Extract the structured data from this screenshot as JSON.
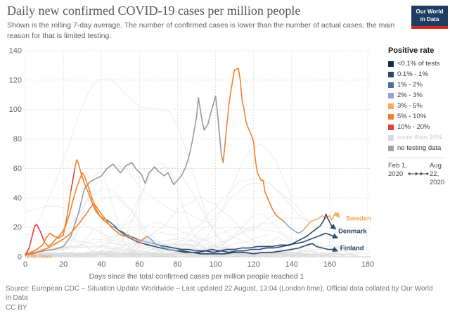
{
  "header": {
    "title": "Daily new confirmed COVID-19 cases per million people",
    "subtitle": "Shown is the rolling 7-day average. The number of confirmed cases is lower than the number of actual cases; the main reason for that is limited testing."
  },
  "logo": {
    "line1": "Our World",
    "line2": "in Data",
    "bg": "#1d3d63",
    "accent": "#d42b21"
  },
  "legend": {
    "title": "Positive rate",
    "items": [
      {
        "label": "<0.1% of tests",
        "color": "#1a2a3e",
        "muted": false
      },
      {
        "label": "0.1% - 1%",
        "color": "#2c4a6e",
        "muted": false
      },
      {
        "label": "1% - 2%",
        "color": "#4a6fa0",
        "muted": false
      },
      {
        "label": "2% - 3%",
        "color": "#8aa8d0",
        "muted": false
      },
      {
        "label": "3% - 5%",
        "color": "#fbab60",
        "muted": false
      },
      {
        "label": "5% - 10%",
        "color": "#f0802f",
        "muted": false
      },
      {
        "label": "10% - 20%",
        "color": "#e0413a",
        "muted": false
      },
      {
        "label": "more than 20%",
        "color": "#d9d9d9",
        "muted": true
      },
      {
        "label": "no testing data",
        "color": "#a3a3a3",
        "muted": false
      }
    ],
    "timeline": {
      "start": "Feb 1, 2020",
      "end": "Aug 22, 2020"
    }
  },
  "footer": {
    "source": "Source: European CDC – Situation Update Worldwide – Last updated 22 August, 13:04 (London time), Official data collated by Our World in Data",
    "license": "CC BY"
  },
  "colors": {
    "grid": "#d9d9d9",
    "axis_line": "#bbbbbb",
    "axis_text": "#666666",
    "background_line": "#dcdcdc",
    "rate_lt01": "#1a2a3e",
    "rate_01_1": "#2c4a6e",
    "rate_1_2": "#4a6fa0",
    "rate_2_3": "#8aa8d0",
    "rate_3_5": "#fbab60",
    "rate_5_10": "#f0802f",
    "rate_10_20": "#e0413a",
    "rate_gt20": "#d9d9d9",
    "no_data": "#989898"
  },
  "chart_data": {
    "type": "line",
    "xlabel": "Days since the total confirmed cases per million people reached 1",
    "ylabel": "",
    "x_ticks": [
      0,
      20,
      40,
      60,
      80,
      100,
      120,
      140,
      160,
      180
    ],
    "y_ticks": [
      0,
      20,
      40,
      60,
      80,
      100,
      120,
      140
    ],
    "x_range": [
      0,
      186
    ],
    "y_range": [
      0,
      140
    ],
    "grid": true,
    "annotation": {
      "text": "2.66 cases",
      "day": 0.6,
      "value": 2.66,
      "color": "#f2924a"
    },
    "background": {
      "count": 46,
      "seed": 7,
      "note": "unhighlighted countries, light gray"
    },
    "series": [
      {
        "name": "Sweden",
        "label": "Sweden",
        "label_color": "#f6a455",
        "label_pos": [
          168.5,
          24.5
        ],
        "arrow": true,
        "segments": [
          {
            "from": 0,
            "to": 104,
            "rate": "no_data"
          },
          {
            "from": 104,
            "to": 136,
            "rate": "rate_5_10"
          },
          {
            "from": 136,
            "to": 145,
            "rate": "rate_2_3"
          },
          {
            "from": 145,
            "to": 166,
            "rate": "rate_3_5"
          }
        ],
        "points": [
          [
            0,
            2
          ],
          [
            5,
            3
          ],
          [
            10,
            4
          ],
          [
            15,
            5
          ],
          [
            20,
            7
          ],
          [
            24,
            14
          ],
          [
            28,
            30
          ],
          [
            31,
            46
          ],
          [
            34,
            51
          ],
          [
            37,
            53
          ],
          [
            40,
            55
          ],
          [
            43,
            60
          ],
          [
            46,
            63
          ],
          [
            48,
            60
          ],
          [
            50,
            57
          ],
          [
            53,
            62
          ],
          [
            56,
            64
          ],
          [
            58,
            60
          ],
          [
            61,
            56
          ],
          [
            63,
            50
          ],
          [
            65,
            57
          ],
          [
            68,
            61
          ],
          [
            70,
            58
          ],
          [
            73,
            55
          ],
          [
            75,
            57
          ],
          [
            78,
            49
          ],
          [
            80,
            52
          ],
          [
            82,
            55
          ],
          [
            84,
            60
          ],
          [
            86,
            68
          ],
          [
            88,
            80
          ],
          [
            90,
            95
          ],
          [
            91,
            108
          ],
          [
            93,
            92
          ],
          [
            94,
            86
          ],
          [
            96,
            90
          ],
          [
            98,
            100
          ],
          [
            100,
            109
          ],
          [
            101,
            98
          ],
          [
            103,
            70
          ],
          [
            104,
            64
          ],
          [
            106,
            90
          ],
          [
            107,
            103
          ],
          [
            108,
            112
          ],
          [
            109,
            120
          ],
          [
            110,
            127
          ],
          [
            112,
            128
          ],
          [
            113,
            120
          ],
          [
            114,
            106
          ],
          [
            115,
            100
          ],
          [
            116,
            92
          ],
          [
            117,
            88
          ],
          [
            119,
            82
          ],
          [
            120,
            78
          ],
          [
            121,
            65
          ],
          [
            122,
            57
          ],
          [
            124,
            52
          ],
          [
            125,
            52
          ],
          [
            126,
            44
          ],
          [
            128,
            38
          ],
          [
            130,
            32
          ],
          [
            132,
            28
          ],
          [
            134,
            26
          ],
          [
            136,
            24
          ],
          [
            138,
            21
          ],
          [
            140,
            19
          ],
          [
            142,
            17
          ],
          [
            144,
            16
          ],
          [
            146,
            18
          ],
          [
            148,
            21
          ],
          [
            150,
            24
          ],
          [
            152,
            25
          ],
          [
            154,
            26
          ],
          [
            156,
            28
          ],
          [
            158,
            26
          ],
          [
            160,
            28
          ],
          [
            161,
            25
          ],
          [
            163,
            30
          ],
          [
            165,
            27
          ]
        ]
      },
      {
        "name": "Denmark",
        "label": "Denmark",
        "label_color": "#2d4257",
        "label_pos": [
          164.5,
          16
        ],
        "arrow": true,
        "segments": [
          {
            "from": 0,
            "to": 9,
            "rate": "rate_10_20"
          },
          {
            "from": 9,
            "to": 24.4,
            "rate": "rate_5_10"
          },
          {
            "from": 24.4,
            "to": 25.6,
            "rate": "rate_10_20"
          },
          {
            "from": 25.6,
            "to": 42,
            "rate": "rate_5_10"
          },
          {
            "from": 42,
            "to": 62,
            "rate": "rate_1_2"
          },
          {
            "from": 62,
            "to": 163,
            "rate": "rate_01_1"
          }
        ],
        "points": [
          [
            0,
            1
          ],
          [
            2,
            6
          ],
          [
            4,
            16
          ],
          [
            5,
            21
          ],
          [
            6,
            22
          ],
          [
            8,
            17
          ],
          [
            10,
            10
          ],
          [
            12,
            7
          ],
          [
            14,
            9
          ],
          [
            16,
            12
          ],
          [
            18,
            13
          ],
          [
            20,
            15
          ],
          [
            22,
            28
          ],
          [
            24,
            45
          ],
          [
            25,
            52
          ],
          [
            26,
            60
          ],
          [
            27,
            66
          ],
          [
            28,
            63
          ],
          [
            29,
            58
          ],
          [
            31,
            50
          ],
          [
            33,
            44
          ],
          [
            35,
            37
          ],
          [
            37,
            31
          ],
          [
            39,
            28
          ],
          [
            41,
            26
          ],
          [
            43,
            25
          ],
          [
            45,
            23
          ],
          [
            47,
            21
          ],
          [
            49,
            18
          ],
          [
            51,
            16
          ],
          [
            53,
            14
          ],
          [
            56,
            12
          ],
          [
            59,
            10
          ],
          [
            62,
            9
          ],
          [
            65,
            8
          ],
          [
            68,
            7
          ],
          [
            71,
            6
          ],
          [
            75,
            5
          ],
          [
            79,
            4
          ],
          [
            83,
            4
          ],
          [
            87,
            3
          ],
          [
            91,
            3
          ],
          [
            95,
            4
          ],
          [
            99,
            3
          ],
          [
            103,
            4
          ],
          [
            107,
            3
          ],
          [
            111,
            4
          ],
          [
            115,
            4
          ],
          [
            119,
            5
          ],
          [
            123,
            5
          ],
          [
            127,
            6
          ],
          [
            131,
            6
          ],
          [
            135,
            7
          ],
          [
            139,
            8
          ],
          [
            142,
            10
          ],
          [
            145,
            12
          ],
          [
            148,
            14
          ],
          [
            151,
            17
          ],
          [
            153,
            19
          ],
          [
            155,
            21
          ],
          [
            157,
            25
          ],
          [
            158,
            29
          ],
          [
            159,
            26
          ],
          [
            161,
            21
          ],
          [
            163,
            19
          ]
        ]
      },
      {
        "name": "unlabeled",
        "label": "",
        "label_color": "#2d4257",
        "label_pos": [
          166,
          12
        ],
        "arrow": true,
        "segments": [
          {
            "from": 0,
            "to": 47,
            "rate": "rate_5_10"
          },
          {
            "from": 47,
            "to": 58,
            "rate": "rate_1_2"
          },
          {
            "from": 58,
            "to": 70,
            "rate": "rate_2_3"
          },
          {
            "from": 70,
            "to": 164,
            "rate": "rate_01_1"
          }
        ],
        "points": [
          [
            0,
            1
          ],
          [
            3,
            3
          ],
          [
            6,
            5
          ],
          [
            9,
            8
          ],
          [
            11,
            13
          ],
          [
            13,
            16
          ],
          [
            15,
            14
          ],
          [
            17,
            13
          ],
          [
            19,
            16
          ],
          [
            21,
            20
          ],
          [
            23,
            28
          ],
          [
            25,
            38
          ],
          [
            27,
            47
          ],
          [
            29,
            54
          ],
          [
            30,
            57
          ],
          [
            31,
            55
          ],
          [
            33,
            48
          ],
          [
            35,
            40
          ],
          [
            37,
            33
          ],
          [
            39,
            28
          ],
          [
            41,
            25
          ],
          [
            43,
            23
          ],
          [
            45,
            21
          ],
          [
            47,
            20
          ],
          [
            49,
            18
          ],
          [
            51,
            17
          ],
          [
            53,
            15
          ],
          [
            55,
            14
          ],
          [
            57,
            13
          ],
          [
            59,
            12
          ],
          [
            61,
            11
          ],
          [
            64,
            10
          ],
          [
            67,
            9
          ],
          [
            70,
            8
          ],
          [
            74,
            7
          ],
          [
            78,
            6
          ],
          [
            82,
            5
          ],
          [
            86,
            5
          ],
          [
            90,
            4
          ],
          [
            94,
            4
          ],
          [
            98,
            5
          ],
          [
            102,
            4
          ],
          [
            106,
            5
          ],
          [
            110,
            5
          ],
          [
            114,
            6
          ],
          [
            118,
            6
          ],
          [
            122,
            7
          ],
          [
            126,
            7
          ],
          [
            130,
            7
          ],
          [
            134,
            8
          ],
          [
            138,
            8
          ],
          [
            142,
            9
          ],
          [
            146,
            10
          ],
          [
            150,
            12
          ],
          [
            154,
            14
          ],
          [
            158,
            16
          ],
          [
            160,
            15
          ],
          [
            162,
            14
          ],
          [
            164,
            13
          ]
        ]
      },
      {
        "name": "Finland",
        "label": "Finland",
        "label_color": "#2d4257",
        "label_pos": [
          165.5,
          4.6
        ],
        "arrow": true,
        "segments": [
          {
            "from": 0,
            "to": 63,
            "rate": "rate_5_10"
          },
          {
            "from": 63,
            "to": 78,
            "rate": "rate_2_3"
          },
          {
            "from": 78,
            "to": 164,
            "rate": "rate_01_1"
          }
        ],
        "points": [
          [
            0,
            1
          ],
          [
            4,
            2
          ],
          [
            8,
            4
          ],
          [
            12,
            6
          ],
          [
            16,
            9
          ],
          [
            20,
            12
          ],
          [
            23,
            15
          ],
          [
            26,
            19
          ],
          [
            29,
            24
          ],
          [
            32,
            29
          ],
          [
            34,
            33
          ],
          [
            36,
            36
          ],
          [
            38,
            33
          ],
          [
            40,
            29
          ],
          [
            42,
            26
          ],
          [
            44,
            22
          ],
          [
            46,
            19
          ],
          [
            48,
            17
          ],
          [
            50,
            15
          ],
          [
            52,
            14
          ],
          [
            54,
            15
          ],
          [
            56,
            13
          ],
          [
            58,
            12
          ],
          [
            60,
            10
          ],
          [
            62,
            12
          ],
          [
            64,
            14
          ],
          [
            66,
            12
          ],
          [
            68,
            9
          ],
          [
            70,
            8
          ],
          [
            73,
            6
          ],
          [
            76,
            5
          ],
          [
            80,
            4
          ],
          [
            84,
            3
          ],
          [
            88,
            3
          ],
          [
            92,
            2
          ],
          [
            96,
            2
          ],
          [
            100,
            2
          ],
          [
            105,
            2
          ],
          [
            110,
            3
          ],
          [
            115,
            3
          ],
          [
            120,
            2
          ],
          [
            125,
            3
          ],
          [
            130,
            3
          ],
          [
            135,
            4
          ],
          [
            140,
            5
          ],
          [
            144,
            6
          ],
          [
            148,
            8
          ],
          [
            151,
            9
          ],
          [
            153,
            7
          ],
          [
            156,
            6
          ],
          [
            159,
            5
          ],
          [
            162,
            5
          ],
          [
            164,
            4
          ]
        ]
      }
    ]
  }
}
